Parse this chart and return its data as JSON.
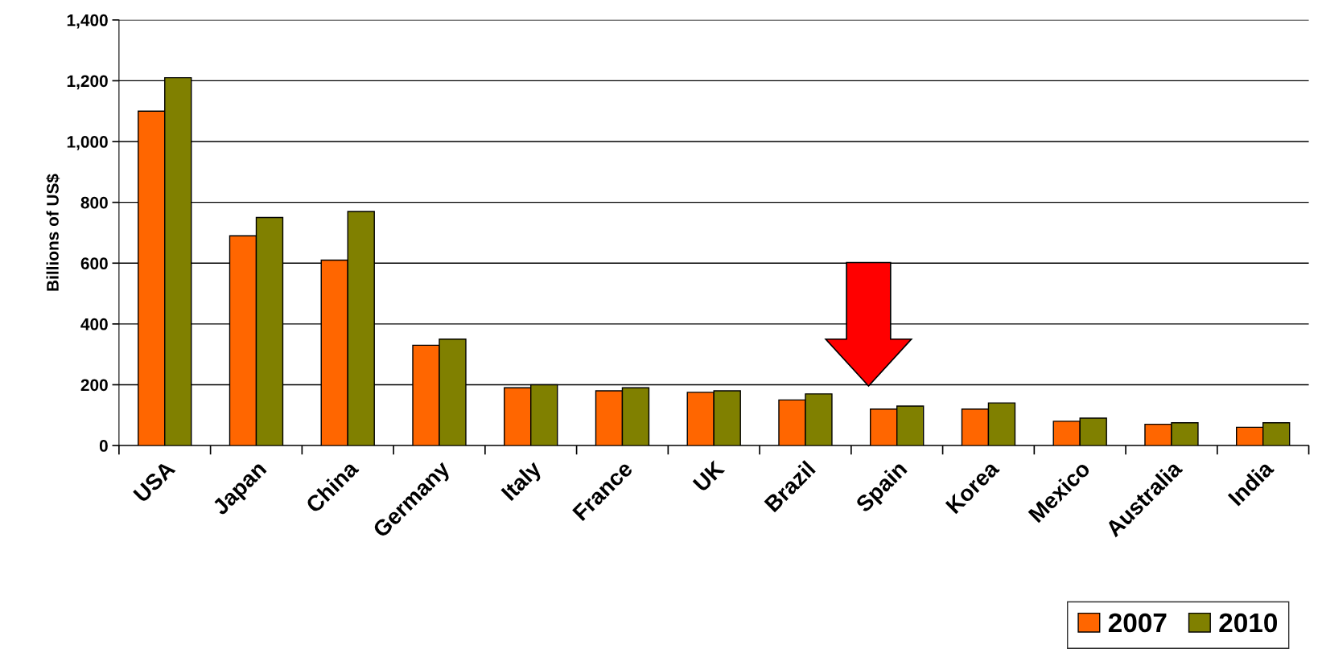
{
  "chart_data": {
    "type": "bar",
    "ylabel": "Billions of US$",
    "categories": [
      "USA",
      "Japan",
      "China",
      "Germany",
      "Italy",
      "France",
      "UK",
      "Brazil",
      "Spain",
      "Korea",
      "Mexico",
      "Australia",
      "India"
    ],
    "series": [
      {
        "name": "2007",
        "color": "#ff6600",
        "values": [
          1100,
          690,
          610,
          330,
          190,
          180,
          175,
          150,
          120,
          120,
          80,
          70,
          60
        ]
      },
      {
        "name": "2010",
        "color": "#808000",
        "values": [
          1210,
          750,
          770,
          350,
          200,
          190,
          180,
          170,
          130,
          140,
          90,
          75,
          75
        ]
      }
    ],
    "ylim": [
      0,
      1400
    ],
    "yticks": [
      {
        "value": 0,
        "label": "0"
      },
      {
        "value": 200,
        "label": "200"
      },
      {
        "value": 400,
        "label": "400"
      },
      {
        "value": 600,
        "label": "600"
      },
      {
        "value": 800,
        "label": "800"
      },
      {
        "value": 1000,
        "label": "1,000"
      },
      {
        "value": 1200,
        "label": "1,200"
      },
      {
        "value": 1400,
        "label": "1,400"
      }
    ],
    "grid": "y",
    "legend": "bottom right"
  }
}
